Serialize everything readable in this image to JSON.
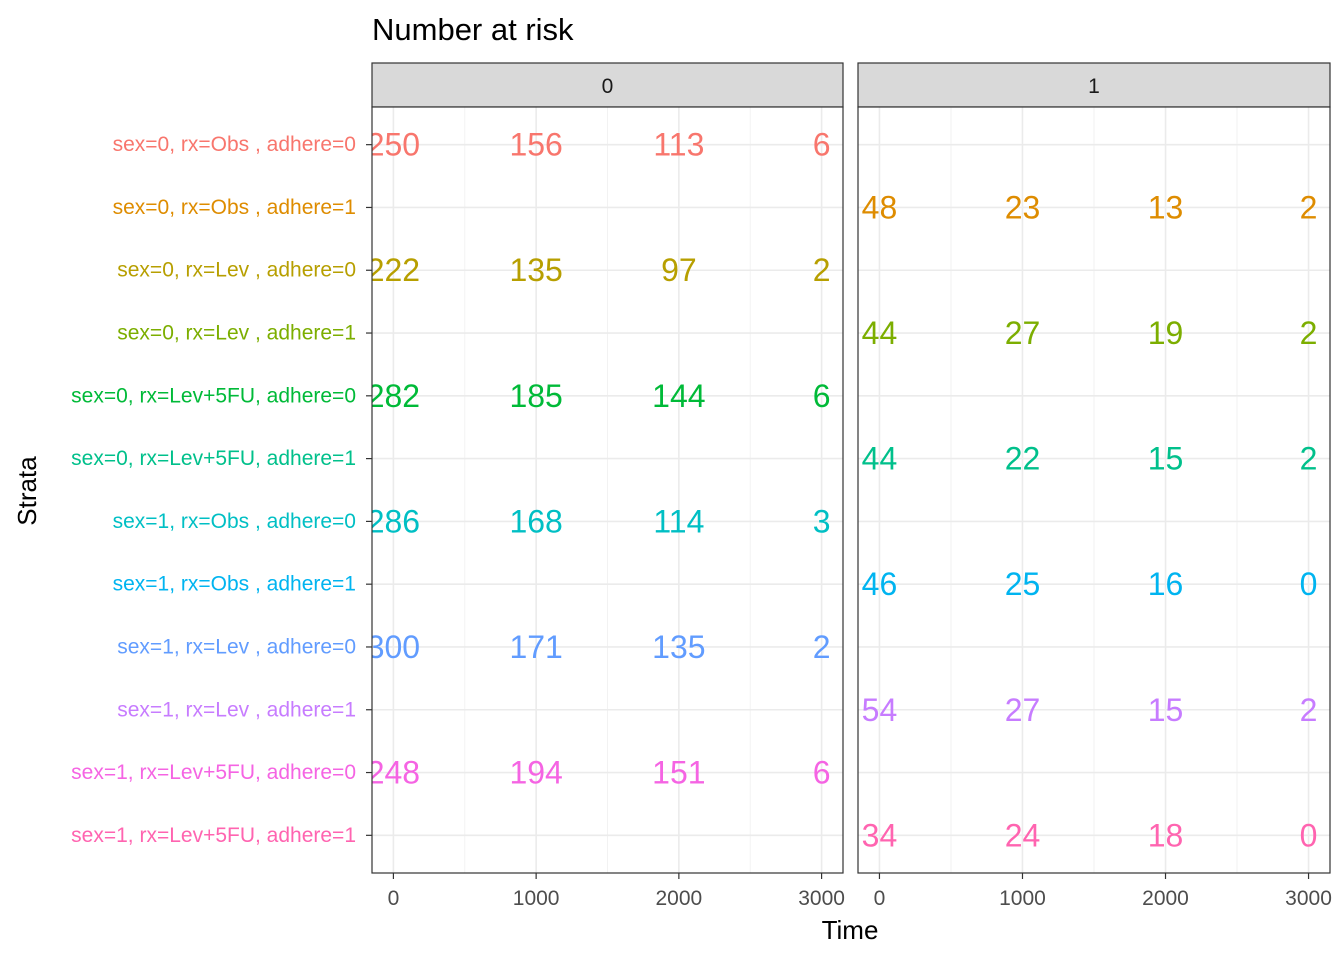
{
  "chart_data": {
    "type": "table",
    "title": "Number at risk",
    "xlabel": "Time",
    "ylabel": "Strata",
    "x_ticks": [
      0,
      1000,
      2000,
      3000
    ],
    "xlim": [
      -150,
      3150
    ],
    "grid": true,
    "facet_variable": "sex",
    "panels": [
      "0",
      "1"
    ],
    "strata": [
      {
        "label": "sex=0, rx=Obs , adhere=0",
        "color": "#F8766D",
        "panel": "0",
        "x": [
          0,
          1000,
          2000,
          3000
        ],
        "values": [
          250,
          156,
          113,
          6
        ]
      },
      {
        "label": "sex=0, rx=Obs , adhere=1",
        "color": "#DE8C00",
        "panel": "1",
        "x": [
          0,
          1000,
          2000,
          3000
        ],
        "values": [
          48,
          23,
          13,
          2
        ]
      },
      {
        "label": "sex=0, rx=Lev , adhere=0",
        "color": "#B79F00",
        "panel": "0",
        "x": [
          0,
          1000,
          2000,
          3000
        ],
        "values": [
          222,
          135,
          97,
          2
        ]
      },
      {
        "label": "sex=0, rx=Lev , adhere=1",
        "color": "#7CAE00",
        "panel": "1",
        "x": [
          0,
          1000,
          2000,
          3000
        ],
        "values": [
          44,
          27,
          19,
          2
        ]
      },
      {
        "label": "sex=0, rx=Lev+5FU, adhere=0",
        "color": "#00BA38",
        "panel": "0",
        "x": [
          0,
          1000,
          2000,
          3000
        ],
        "values": [
          282,
          185,
          144,
          6
        ]
      },
      {
        "label": "sex=0, rx=Lev+5FU, adhere=1",
        "color": "#00C08B",
        "panel": "1",
        "x": [
          0,
          1000,
          2000,
          3000
        ],
        "values": [
          44,
          22,
          15,
          2
        ]
      },
      {
        "label": "sex=1, rx=Obs , adhere=0",
        "color": "#00BFC4",
        "panel": "0",
        "x": [
          0,
          1000,
          2000,
          3000
        ],
        "values": [
          286,
          168,
          114,
          3
        ]
      },
      {
        "label": "sex=1, rx=Obs , adhere=1",
        "color": "#00B4F0",
        "panel": "1",
        "x": [
          0,
          1000,
          2000,
          3000
        ],
        "values": [
          46,
          25,
          16,
          0
        ]
      },
      {
        "label": "sex=1, rx=Lev , adhere=0",
        "color": "#619CFF",
        "panel": "0",
        "x": [
          0,
          1000,
          2000,
          3000
        ],
        "values": [
          300,
          171,
          135,
          2
        ]
      },
      {
        "label": "sex=1, rx=Lev , adhere=1",
        "color": "#C77CFF",
        "panel": "1",
        "x": [
          0,
          1000,
          2000,
          3000
        ],
        "values": [
          54,
          27,
          15,
          2
        ]
      },
      {
        "label": "sex=1, rx=Lev+5FU, adhere=0",
        "color": "#F564E3",
        "panel": "0",
        "x": [
          0,
          1000,
          2000,
          3000
        ],
        "values": [
          248,
          194,
          151,
          6
        ]
      },
      {
        "label": "sex=1, rx=Lev+5FU, adhere=1",
        "color": "#FF64B0",
        "panel": "1",
        "x": [
          0,
          1000,
          2000,
          3000
        ],
        "values": [
          34,
          24,
          18,
          0
        ]
      }
    ]
  }
}
